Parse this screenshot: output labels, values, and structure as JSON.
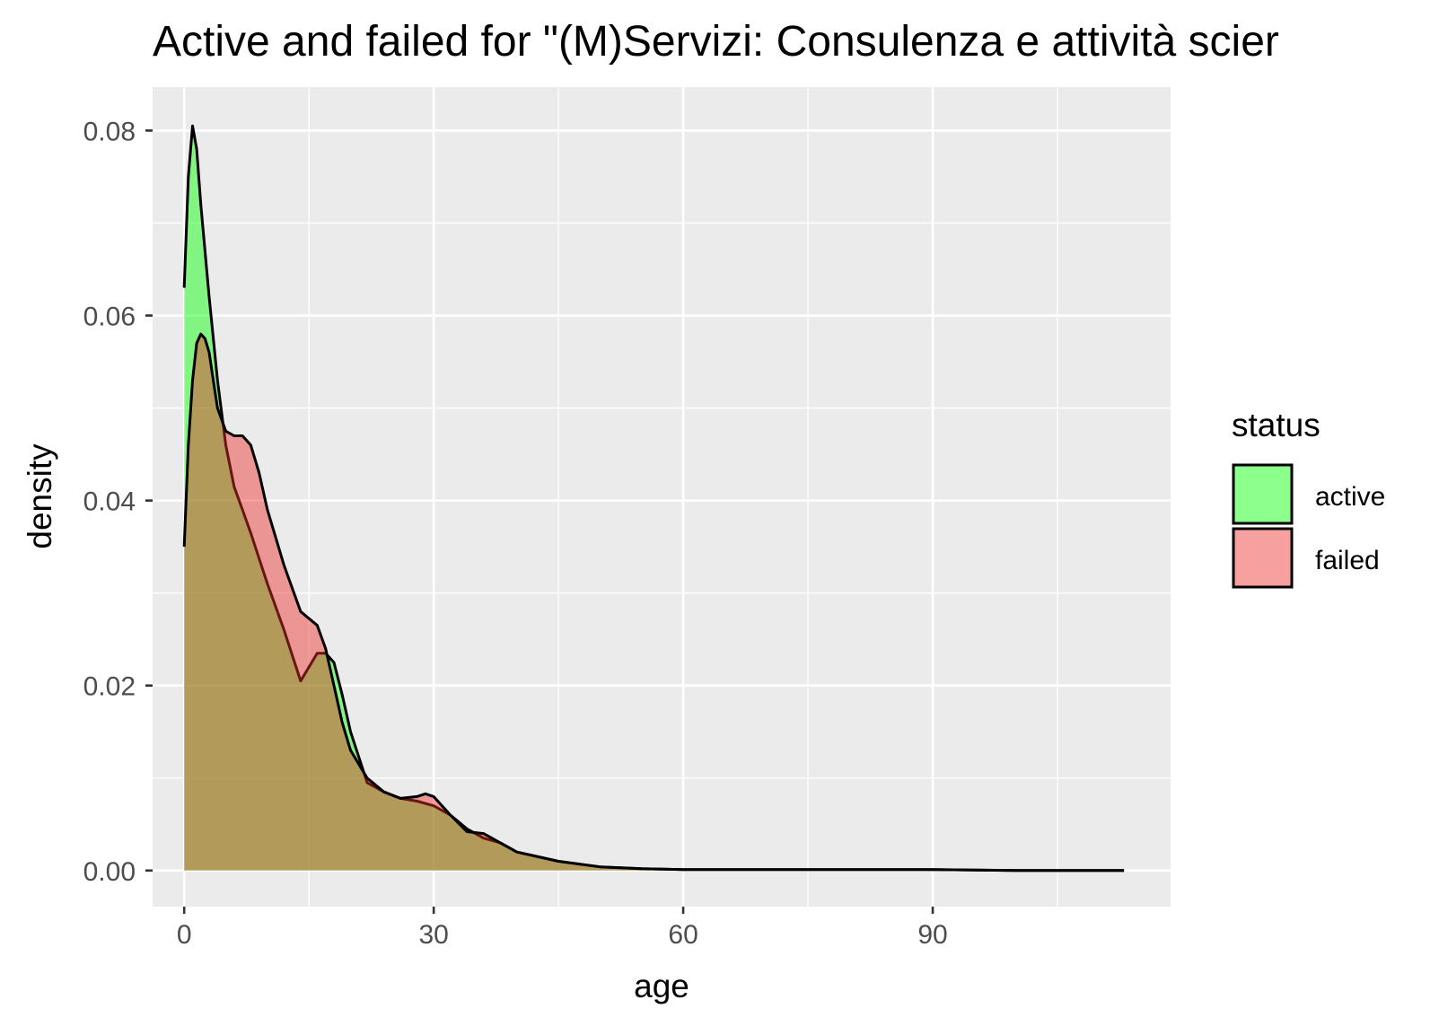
{
  "chart_data": {
    "type": "area",
    "title": "Active and failed for \"(M)Servizi: Consulenza e attività scier",
    "xlabel": "age",
    "ylabel": "density",
    "xlim": [
      -3.8,
      118.6
    ],
    "ylim": [
      -0.0039,
      0.0847
    ],
    "x_ticks": [
      0,
      30,
      60,
      90
    ],
    "x_tick_labels": [
      "0",
      "30",
      "60",
      "90"
    ],
    "y_ticks": [
      0.0,
      0.02,
      0.04,
      0.06,
      0.08
    ],
    "y_tick_labels": [
      "0.00",
      "0.02",
      "0.04",
      "0.06",
      "0.08"
    ],
    "grid": true,
    "legend": {
      "title": "status",
      "placement": "right"
    },
    "series": [
      {
        "name": "active",
        "color": "#00ff00",
        "x": [
          0,
          0.5,
          1,
          1.5,
          2,
          3,
          4,
          5,
          6,
          7,
          8,
          10,
          12,
          14,
          16,
          17,
          18,
          19,
          20,
          22,
          24,
          26,
          28,
          30,
          32,
          34,
          36,
          38,
          40,
          45,
          50,
          55,
          60,
          70,
          80,
          90,
          100,
          113
        ],
        "y": [
          0.063,
          0.075,
          0.0805,
          0.078,
          0.072,
          0.062,
          0.053,
          0.046,
          0.0415,
          0.039,
          0.0365,
          0.031,
          0.026,
          0.0205,
          0.0235,
          0.0235,
          0.0225,
          0.019,
          0.015,
          0.0095,
          0.0085,
          0.0078,
          0.0075,
          0.007,
          0.006,
          0.0045,
          0.0035,
          0.003,
          0.002,
          0.001,
          0.0004,
          0.0002,
          0.0001,
          0.0001,
          0.0001,
          0.0001,
          0.0,
          0.0
        ]
      },
      {
        "name": "failed",
        "color": "#ee2c2c",
        "x": [
          0,
          0.5,
          1,
          1.5,
          2,
          2.5,
          3,
          3.5,
          4,
          5,
          6,
          7,
          8,
          9,
          10,
          12,
          14,
          16,
          17,
          18,
          19,
          20,
          22,
          24,
          26,
          28,
          29,
          30,
          32,
          34,
          36,
          38,
          40,
          45,
          50,
          55,
          60,
          70,
          80,
          90,
          100,
          113
        ],
        "y": [
          0.035,
          0.046,
          0.053,
          0.057,
          0.058,
          0.0575,
          0.056,
          0.053,
          0.05,
          0.0475,
          0.047,
          0.047,
          0.046,
          0.043,
          0.039,
          0.033,
          0.028,
          0.0265,
          0.024,
          0.02,
          0.016,
          0.013,
          0.01,
          0.0085,
          0.0078,
          0.008,
          0.0083,
          0.008,
          0.006,
          0.0042,
          0.004,
          0.003,
          0.002,
          0.001,
          0.0004,
          0.0002,
          0.0001,
          0.0001,
          0.0001,
          0.0001,
          0.0,
          0.0
        ]
      }
    ]
  }
}
